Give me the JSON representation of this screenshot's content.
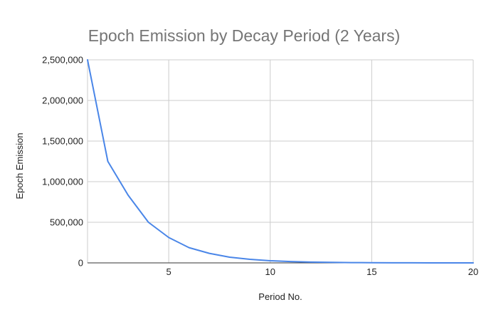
{
  "chart_data": {
    "type": "line",
    "title": "Epoch Emission by Decay Period (2 Years)",
    "xlabel": "Period No.",
    "ylabel": "Epoch Emission",
    "xlim": [
      1,
      20
    ],
    "ylim": [
      0,
      2500000
    ],
    "x_ticks": [
      5,
      10,
      15,
      20
    ],
    "y_ticks": [
      0,
      500000,
      1000000,
      1500000,
      2000000,
      2500000
    ],
    "y_tick_labels": [
      "0",
      "500,000",
      "1,000,000",
      "1,500,000",
      "2,000,000",
      "2,500,000"
    ],
    "grid": true,
    "legend": "none",
    "series": [
      {
        "color": "#4a86e8",
        "x": [
          1,
          2,
          3,
          4,
          5,
          6,
          7,
          8,
          9,
          10,
          11,
          12,
          13,
          14,
          15,
          16,
          17,
          18,
          19,
          20
        ],
        "values": [
          2500000,
          1250000,
          833333,
          500000,
          312500,
          187500,
          117188,
          70313,
          43945,
          26367,
          16479,
          9888,
          6180,
          3708,
          2317,
          1390,
          869,
          521,
          326,
          196
        ]
      }
    ]
  }
}
